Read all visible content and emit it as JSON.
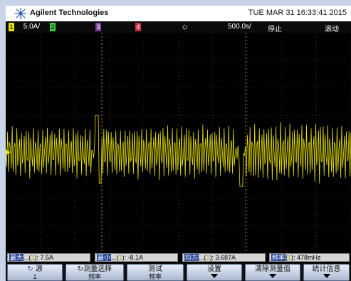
{
  "header": {
    "brand": "Agilent Technologies",
    "datetime": "TUE MAR 31 16:33:41 2015"
  },
  "status": {
    "ch1_num": "1",
    "ch1_scale": "5.0A/",
    "ch2_num": "2",
    "ch3_num": "3",
    "ch4_num": "4",
    "timebase": "500.0s/",
    "run_state": "停止",
    "mode": "滚动"
  },
  "measurements": [
    {
      "name": "最大",
      "ch": "1",
      "value": ": 7.5A"
    },
    {
      "name": "最小",
      "ch": "1",
      "value": ": -8.1A"
    },
    {
      "name": "均方",
      "ch": "1",
      "value": ": 3.687A"
    },
    {
      "name": "频率",
      "ch": "1",
      "value": ": 478mHz"
    }
  ],
  "softkeys": {
    "source_label": "源",
    "source_value": "1",
    "select_label": "测量选择",
    "select_sub": "频率",
    "test_label": "测试",
    "test_sub": "频率",
    "settings_label": "设置",
    "clear_label": "清除测量值",
    "stats_label": "统计信息"
  },
  "colors": {
    "ch1": "#e6e000",
    "ch2": "#3ec83e",
    "ch3": "#8040a0",
    "ch4": "#d03050",
    "grid": "#5a5a5a"
  }
}
